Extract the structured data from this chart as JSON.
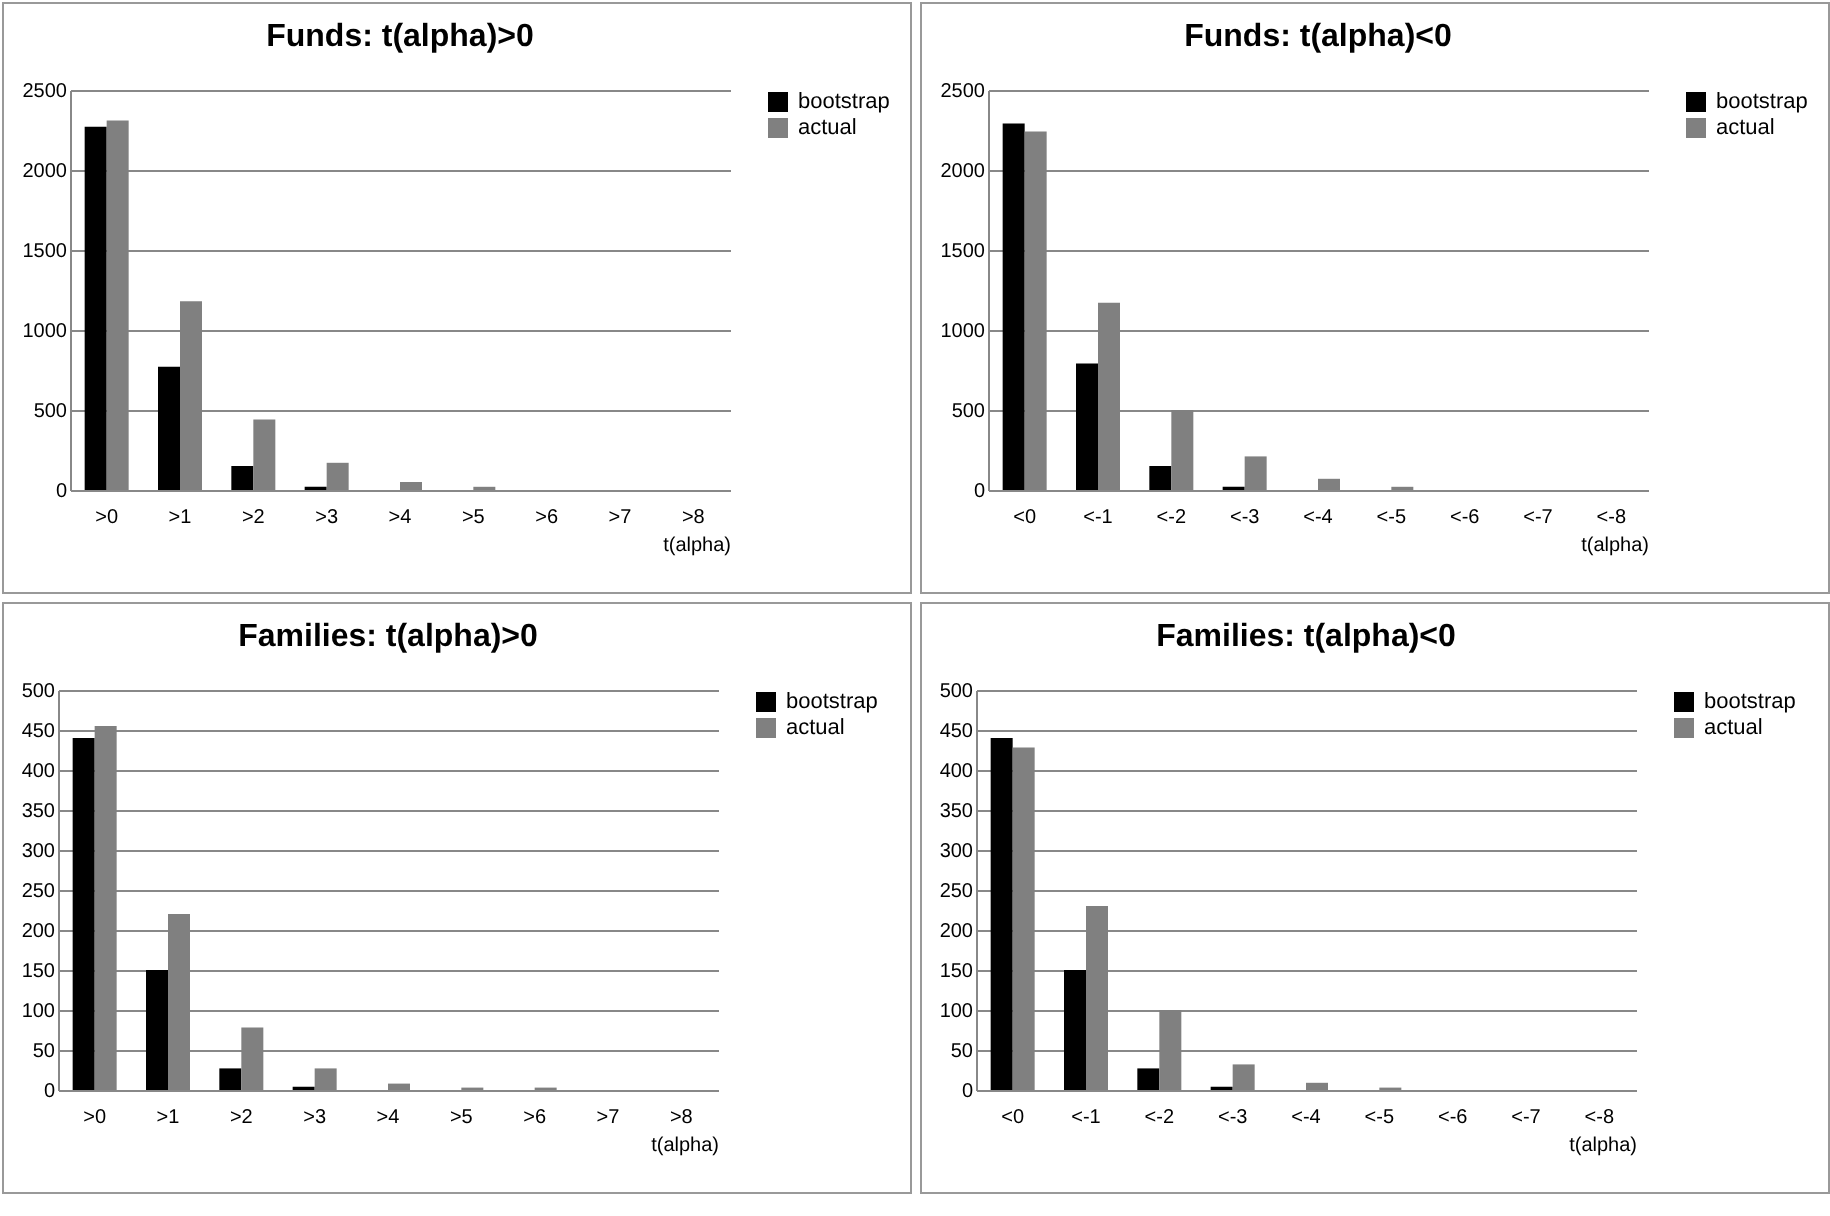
{
  "chart_data": [
    {
      "type": "bar",
      "title": "Funds: t(alpha)>0",
      "xlabel": "t(alpha)",
      "categories": [
        ">0",
        ">1",
        ">2",
        ">3",
        ">4",
        ">5",
        ">6",
        ">7",
        ">8"
      ],
      "series": [
        {
          "name": "bootstrap",
          "color": "#000000",
          "values": [
            2270,
            770,
            150,
            20,
            0,
            0,
            0,
            0,
            0
          ]
        },
        {
          "name": "actual",
          "color": "#808080",
          "values": [
            2310,
            1180,
            440,
            170,
            50,
            20,
            0,
            0,
            0
          ]
        }
      ],
      "ylim": [
        0,
        2500
      ],
      "yticks": [
        0,
        500,
        1000,
        1500,
        2000,
        2500
      ],
      "grid": "y",
      "legend": "right"
    },
    {
      "type": "bar",
      "title": "Funds: t(alpha)<0",
      "xlabel": "t(alpha)",
      "categories": [
        "<0",
        "<-1",
        "<-2",
        "<-3",
        "<-4",
        "<-5",
        "<-6",
        "<-7",
        "<-8"
      ],
      "series": [
        {
          "name": "bootstrap",
          "color": "#000000",
          "values": [
            2290,
            790,
            150,
            20,
            0,
            0,
            0,
            0,
            0
          ]
        },
        {
          "name": "actual",
          "color": "#808080",
          "values": [
            2240,
            1170,
            500,
            210,
            70,
            20,
            0,
            0,
            0
          ]
        }
      ],
      "ylim": [
        0,
        2500
      ],
      "yticks": [
        0,
        500,
        1000,
        1500,
        2000,
        2500
      ],
      "grid": "y",
      "legend": "right"
    },
    {
      "type": "bar",
      "title": "Families: t(alpha)>0",
      "xlabel": "t(alpha)",
      "categories": [
        ">0",
        ">1",
        ">2",
        ">3",
        ">4",
        ">5",
        ">6",
        ">7",
        ">8"
      ],
      "series": [
        {
          "name": "bootstrap",
          "color": "#000000",
          "values": [
            440,
            150,
            27,
            4,
            0,
            0,
            0,
            0,
            0
          ]
        },
        {
          "name": "actual",
          "color": "#808080",
          "values": [
            455,
            220,
            78,
            27,
            8,
            3,
            3,
            0,
            0
          ]
        }
      ],
      "ylim": [
        0,
        500
      ],
      "yticks": [
        0,
        50,
        100,
        150,
        200,
        250,
        300,
        350,
        400,
        450,
        500
      ],
      "grid": "y",
      "legend": "right"
    },
    {
      "type": "bar",
      "title": "Families: t(alpha)<0",
      "xlabel": "t(alpha)",
      "categories": [
        "<0",
        "<-1",
        "<-2",
        "<-3",
        "<-4",
        "<-5",
        "<-6",
        "<-7",
        "<-8"
      ],
      "series": [
        {
          "name": "bootstrap",
          "color": "#000000",
          "values": [
            440,
            150,
            27,
            4,
            0,
            0,
            0,
            0,
            0
          ]
        },
        {
          "name": "actual",
          "color": "#808080",
          "values": [
            428,
            230,
            100,
            32,
            9,
            3,
            0,
            0,
            0
          ]
        }
      ],
      "ylim": [
        0,
        500
      ],
      "yticks": [
        0,
        50,
        100,
        150,
        200,
        250,
        300,
        350,
        400,
        450,
        500
      ],
      "grid": "y",
      "legend": "right"
    }
  ]
}
